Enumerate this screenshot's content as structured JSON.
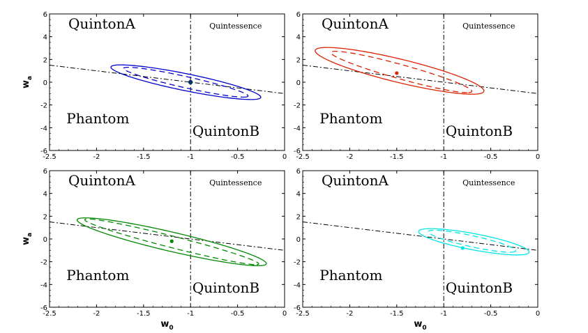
{
  "chart_data": [
    {
      "type": "scatter",
      "panel": "top-left",
      "xlim": [
        -2.5,
        0
      ],
      "ylim": [
        -6,
        6
      ],
      "xticks": [
        "-2.5",
        "-2",
        "-1.5",
        "-1",
        "-0.5",
        "0"
      ],
      "yticks": [
        "-6",
        "-4",
        "-2",
        "0",
        "2",
        "4",
        "6"
      ],
      "xlabel": "",
      "ylabel": "w_a",
      "color": "#0000cc",
      "point": {
        "x": -1.0,
        "y": 0.0
      },
      "solid_ellipse": {
        "cx": -1.05,
        "cy": 0.0,
        "a": 1.68,
        "b": 0.36,
        "slope": -2.08
      },
      "dashed_ellipse": {
        "cx": -1.05,
        "cy": 0.0,
        "a": 1.45,
        "b": 0.23,
        "slope": -2.08
      },
      "regions": {
        "quintomA": "QuintonA",
        "quintomB": "QuintonB",
        "phantom": "Phantom",
        "quintessence": "Quintessence"
      }
    },
    {
      "type": "scatter",
      "panel": "top-right",
      "xlim": [
        -2.5,
        0
      ],
      "ylim": [
        -6,
        6
      ],
      "xticks": [
        "-2.5",
        "-2",
        "-1.5",
        "-1",
        "-0.5",
        "0"
      ],
      "yticks": [
        "-6",
        "-4",
        "-2",
        "0",
        "2",
        "4",
        "6"
      ],
      "xlabel": "",
      "ylabel": "",
      "color": "#dd2200",
      "point": {
        "x": -1.5,
        "y": 0.8
      },
      "solid_ellipse": {
        "cx": -1.47,
        "cy": 1.0,
        "a": 2.2,
        "b": 0.43,
        "slope": -2.55
      },
      "dashed_ellipse": {
        "cx": -1.45,
        "cy": 0.9,
        "a": 1.95,
        "b": 0.25,
        "slope": -2.55
      },
      "regions": {
        "quintomA": "QuintonA",
        "quintomB": "QuintonB",
        "phantom": "Phantom",
        "quintessence": "Quintessence"
      }
    },
    {
      "type": "scatter",
      "panel": "bottom-left",
      "xlim": [
        -2.5,
        0
      ],
      "ylim": [
        -6,
        6
      ],
      "xticks": [
        "-2.5",
        "-2",
        "-1.5",
        "-1",
        "-0.5",
        "0"
      ],
      "yticks": [
        "-6",
        "-4",
        "-2",
        "0",
        "2",
        "4",
        "6"
      ],
      "xlabel": "w_0",
      "ylabel": "w_a",
      "color": "#008800",
      "point": {
        "x": -1.2,
        "y": -0.2
      },
      "solid_ellipse": {
        "cx": -1.2,
        "cy": -0.25,
        "a": 2.3,
        "b": 0.38,
        "slope": -2.22
      },
      "dashed_ellipse": {
        "cx": -1.2,
        "cy": -0.25,
        "a": 2.2,
        "b": 0.22,
        "slope": -2.22
      },
      "regions": {
        "quintomA": "QuintonA",
        "quintomB": "QuintonB",
        "phantom": "Phantom",
        "quintessence": "Quintessence"
      }
    },
    {
      "type": "scatter",
      "panel": "bottom-right",
      "xlim": [
        -2.5,
        0
      ],
      "ylim": [
        -6,
        6
      ],
      "xticks": [
        "-2.5",
        "-2",
        "-1.5",
        "-1",
        "-0.5",
        "0"
      ],
      "yticks": [
        "-6",
        "-4",
        "-2",
        "0",
        "2",
        "4",
        "6"
      ],
      "xlabel": "w_0",
      "ylabel": "",
      "color": "#00e5e5",
      "point": {
        "x": -0.8,
        "y": -0.8
      },
      "solid_ellipse": {
        "cx": -0.68,
        "cy": -0.25,
        "a": 1.25,
        "b": 0.34,
        "slope": -2.3
      },
      "dashed_ellipse": {
        "cx": -0.7,
        "cy": -0.2,
        "a": 1.05,
        "b": 0.22,
        "slope": -2.3
      },
      "regions": {
        "quintomA": "QuintonA",
        "quintomB": "QuintonB",
        "phantom": "Phantom",
        "quintessence": "Quintessence"
      }
    }
  ],
  "reference_lines": {
    "vertical_w0": -1,
    "dashdot_line": {
      "x": [
        -2.5,
        0
      ],
      "y": [
        1.5,
        -1.0
      ]
    }
  }
}
